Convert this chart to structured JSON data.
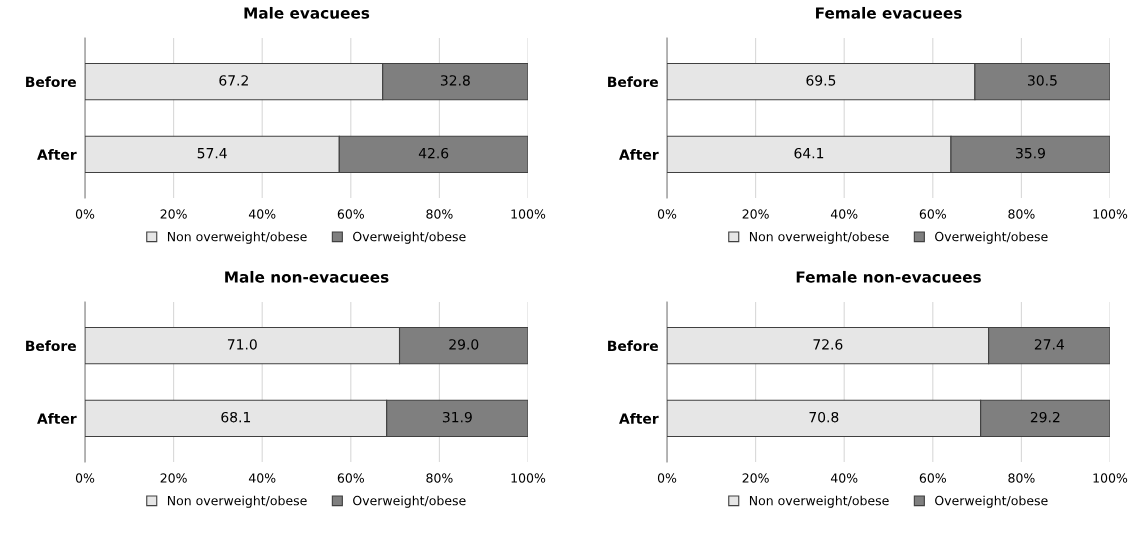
{
  "chart_data": [
    {
      "type": "bar",
      "title": "Male evacuees",
      "orientation": "horizontal",
      "stacked": true,
      "categories": [
        "Before",
        "After"
      ],
      "series": [
        {
          "name": "Non overweight/obese",
          "color": "#e6e6e6",
          "values": [
            67.2,
            57.4
          ]
        },
        {
          "name": "Overweight/obese",
          "color": "#7f7f7f",
          "values": [
            32.8,
            42.6
          ]
        }
      ],
      "xlim": [
        0,
        100
      ],
      "xticks": [
        {
          "value": 0,
          "label": "0%"
        },
        {
          "value": 20,
          "label": "20%"
        },
        {
          "value": 40,
          "label": "40%"
        },
        {
          "value": 60,
          "label": "60%"
        },
        {
          "value": 80,
          "label": "80%"
        },
        {
          "value": 100,
          "label": "100%"
        }
      ],
      "grid": "x",
      "legend": "bottom",
      "data_labels": true
    },
    {
      "type": "bar",
      "title": "Female evacuees",
      "orientation": "horizontal",
      "stacked": true,
      "categories": [
        "Before",
        "After"
      ],
      "series": [
        {
          "name": "Non overweight/obese",
          "color": "#e6e6e6",
          "values": [
            69.5,
            64.1
          ]
        },
        {
          "name": "Overweight/obese",
          "color": "#7f7f7f",
          "values": [
            30.5,
            35.9
          ]
        }
      ],
      "xlim": [
        0,
        100
      ],
      "xticks": [
        {
          "value": 0,
          "label": "0%"
        },
        {
          "value": 20,
          "label": "20%"
        },
        {
          "value": 40,
          "label": "40%"
        },
        {
          "value": 60,
          "label": "60%"
        },
        {
          "value": 80,
          "label": "80%"
        },
        {
          "value": 100,
          "label": "100%"
        }
      ],
      "grid": "x",
      "legend": "bottom",
      "data_labels": true
    },
    {
      "type": "bar",
      "title": "Male non-evacuees",
      "orientation": "horizontal",
      "stacked": true,
      "categories": [
        "Before",
        "After"
      ],
      "series": [
        {
          "name": "Non overweight/obese",
          "color": "#e6e6e6",
          "values": [
            71.0,
            68.1
          ],
          "value_labels": [
            "71.0",
            "68.1"
          ]
        },
        {
          "name": "Overweight/obese",
          "color": "#7f7f7f",
          "values": [
            29.0,
            31.9
          ],
          "value_labels": [
            "29.0",
            "31.9"
          ]
        }
      ],
      "xlim": [
        0,
        100
      ],
      "xticks": [
        {
          "value": 0,
          "label": "0%"
        },
        {
          "value": 20,
          "label": "20%"
        },
        {
          "value": 40,
          "label": "40%"
        },
        {
          "value": 60,
          "label": "60%"
        },
        {
          "value": 80,
          "label": "80%"
        },
        {
          "value": 100,
          "label": "100%"
        }
      ],
      "grid": "x",
      "legend": "bottom"
    },
    {
      "type": "bar",
      "title": "Female non-evacuees",
      "orientation": "horizontal",
      "stacked": true,
      "categories": [
        "Before",
        "After"
      ],
      "series": [
        {
          "name": "Non overweight/obese",
          "color": "#e6e6e6",
          "values": [
            72.6,
            70.8
          ]
        },
        {
          "name": "Overweight/obese",
          "color": "#7f7f7f",
          "values": [
            27.4,
            29.2
          ]
        }
      ],
      "xlim": [
        0,
        100
      ],
      "xticks": [
        {
          "value": 0,
          "label": "0%"
        },
        {
          "value": 20,
          "label": "20%"
        },
        {
          "value": 40,
          "label": "40%"
        },
        {
          "value": 60,
          "label": "60%"
        },
        {
          "value": 80,
          "label": "80%"
        },
        {
          "value": 100,
          "label": "100%"
        }
      ],
      "grid": "x",
      "legend": "bottom",
      "data_labels": true
    }
  ]
}
